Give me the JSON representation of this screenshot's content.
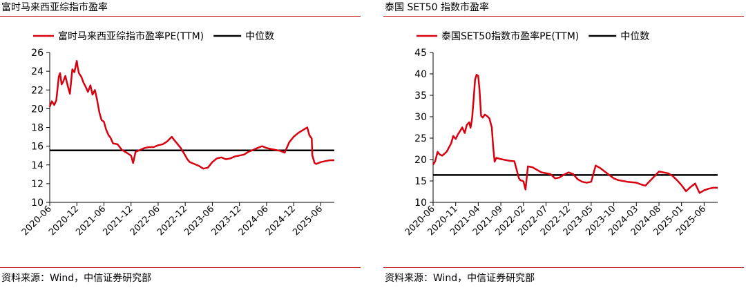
{
  "panels": [
    {
      "title": "富时马来西亚综指市盈率",
      "source": "资料来源：Wind，中信证券研究部",
      "chart_data": {
        "type": "line",
        "title": "富时马来西亚综指市盈率",
        "xlabel": "",
        "ylabel": "",
        "ylim": [
          10,
          26
        ],
        "yticks": [
          10,
          12,
          14,
          16,
          18,
          20,
          22,
          24,
          26
        ],
        "xlim": [
          "2020-06",
          "2025-09"
        ],
        "xticks": [
          "2020-06",
          "2020-12",
          "2021-06",
          "2021-12",
          "2022-06",
          "2022-12",
          "2023-06",
          "2023-12",
          "2024-06",
          "2024-12",
          "2025-06"
        ],
        "grid": false,
        "legend_position": "top",
        "series": [
          {
            "name": "富时马来西亚综指市盈率PE(TTM)",
            "color": "#d7000f",
            "x": [
              "2020-06-01",
              "2020-06-15",
              "2020-07-01",
              "2020-07-15",
              "2020-08-01",
              "2020-08-10",
              "2020-08-20",
              "2020-09-01",
              "2020-09-15",
              "2020-10-01",
              "2020-10-15",
              "2020-11-01",
              "2020-11-15",
              "2020-12-01",
              "2020-12-05",
              "2020-12-15",
              "2021-01-01",
              "2021-01-15",
              "2021-02-01",
              "2021-02-15",
              "2021-03-01",
              "2021-03-15",
              "2021-04-01",
              "2021-04-15",
              "2021-05-01",
              "2021-05-15",
              "2021-06-01",
              "2021-06-15",
              "2021-07-01",
              "2021-07-15",
              "2021-08-01",
              "2021-09-01",
              "2021-10-01",
              "2021-11-01",
              "2021-12-01",
              "2021-12-15",
              "2022-01-01",
              "2022-02-01",
              "2022-03-01",
              "2022-04-01",
              "2022-05-01",
              "2022-06-01",
              "2022-07-01",
              "2022-08-01",
              "2022-09-01",
              "2022-10-01",
              "2022-11-01",
              "2022-12-01",
              "2022-12-15",
              "2023-01-01",
              "2023-02-01",
              "2023-03-01",
              "2023-04-01",
              "2023-05-01",
              "2023-06-01",
              "2023-07-01",
              "2023-08-01",
              "2023-09-01",
              "2023-10-01",
              "2023-11-01",
              "2023-12-01",
              "2024-01-01",
              "2024-02-01",
              "2024-03-01",
              "2024-04-01",
              "2024-05-01",
              "2024-06-01",
              "2024-07-01",
              "2024-08-01",
              "2024-09-01",
              "2024-10-01",
              "2024-11-01",
              "2024-12-01",
              "2025-01-01",
              "2025-02-01",
              "2025-03-01",
              "2025-03-15",
              "2025-04-01",
              "2025-04-05",
              "2025-04-20",
              "2025-05-01",
              "2025-06-01",
              "2025-07-01",
              "2025-08-01",
              "2025-09-01"
            ],
            "values": [
              20.2,
              20.8,
              20.4,
              20.9,
              23.4,
              23.8,
              22.6,
              22.9,
              23.5,
              22.4,
              21.6,
              24.2,
              23.9,
              25.1,
              24.6,
              23.8,
              23.4,
              22.8,
              22.3,
              21.8,
              22.5,
              21.5,
              22.0,
              21.0,
              19.6,
              18.8,
              18.6,
              17.8,
              17.2,
              16.9,
              16.3,
              16.2,
              15.6,
              15.3,
              15.0,
              14.2,
              15.4,
              15.6,
              15.8,
              15.9,
              15.9,
              16.1,
              16.2,
              16.5,
              17.0,
              16.4,
              15.8,
              15.0,
              14.6,
              14.3,
              14.1,
              13.9,
              13.6,
              13.7,
              14.3,
              14.7,
              14.8,
              14.6,
              14.7,
              14.9,
              15.0,
              15.1,
              15.4,
              15.6,
              15.8,
              16.0,
              15.8,
              15.7,
              15.6,
              15.5,
              15.3,
              16.4,
              17.0,
              17.4,
              17.7,
              18.0,
              17.2,
              16.8,
              15.0,
              14.2,
              14.1,
              14.3,
              14.4,
              14.5,
              14.5
            ]
          },
          {
            "name": "中位数",
            "color": "#000000",
            "value": 15.55
          }
        ]
      }
    },
    {
      "title": "泰国 SET50 指数市盈率",
      "source": "资料来源：Wind，中信证券研究部",
      "chart_data": {
        "type": "line",
        "title": "泰国 SET50 指数市盈率",
        "xlabel": "",
        "ylabel": "",
        "ylim": [
          10,
          45
        ],
        "yticks": [
          10,
          15,
          20,
          25,
          30,
          35,
          40,
          45
        ],
        "xlim": [
          "2020-06",
          "2025-09"
        ],
        "xticks": [
          "2020-06",
          "2020-11",
          "2021-04",
          "2021-09",
          "2022-02",
          "2022-07",
          "2022-12",
          "2023-05",
          "2023-10",
          "2024-03",
          "2024-08",
          "2025-01",
          "2025-06"
        ],
        "grid": false,
        "legend_position": "top",
        "series": [
          {
            "name": "泰国SET50指数市盈率PE(TTM)",
            "color": "#d7000f",
            "x": [
              "2020-06-01",
              "2020-06-15",
              "2020-07-01",
              "2020-07-15",
              "2020-08-01",
              "2020-09-01",
              "2020-10-01",
              "2020-10-15",
              "2020-11-01",
              "2020-11-15",
              "2020-12-01",
              "2020-12-15",
              "2021-01-01",
              "2021-01-15",
              "2021-02-01",
              "2021-02-10",
              "2021-02-20",
              "2021-03-01",
              "2021-03-10",
              "2021-03-20",
              "2021-04-01",
              "2021-04-10",
              "2021-04-20",
              "2021-05-01",
              "2021-05-15",
              "2021-06-01",
              "2021-06-15",
              "2021-07-01",
              "2021-07-10",
              "2021-07-20",
              "2021-08-01",
              "2021-09-01",
              "2021-10-01",
              "2021-11-01",
              "2021-12-01",
              "2022-01-01",
              "2022-01-10",
              "2022-02-01",
              "2022-02-15",
              "2022-03-01",
              "2022-04-01",
              "2022-05-01",
              "2022-06-01",
              "2022-07-01",
              "2022-08-01",
              "2022-09-01",
              "2022-10-01",
              "2022-11-01",
              "2022-12-01",
              "2023-01-01",
              "2023-02-01",
              "2023-03-01",
              "2023-04-01",
              "2023-05-01",
              "2023-06-01",
              "2023-07-01",
              "2023-08-01",
              "2023-09-01",
              "2023-10-01",
              "2023-11-01",
              "2023-12-01",
              "2024-01-01",
              "2024-02-01",
              "2024-03-01",
              "2024-04-01",
              "2024-05-01",
              "2024-06-01",
              "2024-07-01",
              "2024-08-01",
              "2024-09-01",
              "2024-10-01",
              "2024-11-01",
              "2024-12-01",
              "2025-01-01",
              "2025-02-01",
              "2025-03-01",
              "2025-04-01",
              "2025-05-01",
              "2025-06-01",
              "2025-07-01",
              "2025-08-01",
              "2025-09-01"
            ],
            "values": [
              18.8,
              19.6,
              21.8,
              21.2,
              20.9,
              21.8,
              23.8,
              25.5,
              24.8,
              25.8,
              26.7,
              27.5,
              26.2,
              28.1,
              28.7,
              27.4,
              29.5,
              34.5,
              38.7,
              39.8,
              39.5,
              36.1,
              30.2,
              29.8,
              30.5,
              30.1,
              29.6,
              27.5,
              23.1,
              19.5,
              20.4,
              20.1,
              19.9,
              19.7,
              19.6,
              15.6,
              15.2,
              14.9,
              13.0,
              18.4,
              18.2,
              17.6,
              17.0,
              16.8,
              16.6,
              15.6,
              15.8,
              16.5,
              17.0,
              16.6,
              15.4,
              14.8,
              14.6,
              14.8,
              18.6,
              18.0,
              17.2,
              16.4,
              15.6,
              15.2,
              15.0,
              14.8,
              14.7,
              14.6,
              14.2,
              13.9,
              15.0,
              16.1,
              17.2,
              17.0,
              16.8,
              16.2,
              15.2,
              14.0,
              12.6,
              13.6,
              14.4,
              12.2,
              12.8,
              13.2,
              13.4,
              13.4
            ]
          },
          {
            "name": "中位数",
            "color": "#000000",
            "value": 16.4
          }
        ]
      }
    }
  ]
}
